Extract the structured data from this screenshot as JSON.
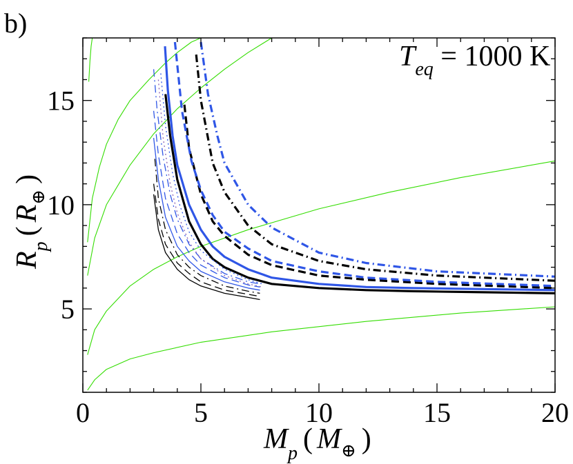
{
  "chart_data": {
    "type": "line",
    "panel_label": "b)",
    "annotation": {
      "prefix": "T",
      "subscript": "eq",
      "suffix": " = 1000 K"
    },
    "xlabel": {
      "symbol": "M",
      "sub": "p",
      "unit_open": "(",
      "unit_symbol": "M",
      "unit_sub": "⊕",
      "unit_close": ")"
    },
    "ylabel": {
      "symbol": "R",
      "sub": "p",
      "unit_open": "(",
      "unit_symbol": "R",
      "unit_sub": "⊕",
      "unit_close": ")"
    },
    "xlim": [
      0,
      20
    ],
    "ylim": [
      1,
      18
    ],
    "xticks": [
      0,
      5,
      10,
      15,
      20
    ],
    "yticks": [
      5,
      10,
      15
    ],
    "colors": {
      "black": "#000000",
      "blue": "#2f56e6",
      "green": "#33dd00"
    },
    "series": [
      {
        "name": "green-1",
        "color": "green",
        "style": "thin",
        "x": [
          0.25,
          0.3,
          0.35,
          0.4
        ],
        "y": [
          15.9,
          16.9,
          17.6,
          18.0
        ]
      },
      {
        "name": "green-2",
        "color": "green",
        "style": "thin",
        "x": [
          0.2,
          0.4,
          0.7,
          1.0,
          1.5,
          2.0,
          2.8,
          3.5,
          4.0,
          4.6,
          5.0
        ],
        "y": [
          8.2,
          10.3,
          11.8,
          12.9,
          14.1,
          15.0,
          16.0,
          16.8,
          17.3,
          17.8,
          18.0
        ]
      },
      {
        "name": "green-3",
        "color": "green",
        "style": "thin",
        "x": [
          0.2,
          0.5,
          1.0,
          2.0,
          3.0,
          4.0,
          5.0,
          6.0,
          7.0,
          8.0
        ],
        "y": [
          6.6,
          8.4,
          10.0,
          11.9,
          13.4,
          14.6,
          15.6,
          16.5,
          17.3,
          18.0
        ]
      },
      {
        "name": "green-4",
        "color": "green",
        "style": "thin",
        "x": [
          0.2,
          0.5,
          1.0,
          2.0,
          3.0,
          4.0,
          5.0,
          7.0,
          10.0,
          13.0,
          16.0,
          20.0
        ],
        "y": [
          2.8,
          4.0,
          4.9,
          6.1,
          6.9,
          7.5,
          8.0,
          8.8,
          9.8,
          10.6,
          11.3,
          12.1
        ]
      },
      {
        "name": "green-5",
        "color": "green",
        "style": "thin",
        "x": [
          0.2,
          0.5,
          1.0,
          2.0,
          3.0,
          5.0,
          8.0,
          12.0,
          16.0,
          20.0
        ],
        "y": [
          1.1,
          1.6,
          2.1,
          2.6,
          2.9,
          3.4,
          3.9,
          4.4,
          4.8,
          5.1
        ]
      },
      {
        "name": "black-solid-thick",
        "color": "black",
        "style": "solid",
        "width": 3.2,
        "x": [
          3.5,
          3.7,
          4.0,
          4.5,
          5.0,
          5.5,
          6.0,
          7.0,
          8.0,
          10.0,
          12.0,
          14.0,
          17.0,
          20.0
        ],
        "y": [
          15.3,
          13.3,
          11.2,
          9.2,
          8.1,
          7.4,
          7.0,
          6.5,
          6.2,
          6.0,
          5.9,
          5.85,
          5.8,
          5.75
        ]
      },
      {
        "name": "blue-solid-thick",
        "color": "blue",
        "style": "solid",
        "width": 3.2,
        "x": [
          3.48,
          3.6,
          3.8,
          4.0,
          4.5,
          5.0,
          5.5,
          6.0,
          7.0,
          8.0,
          10.0,
          12.0,
          14.0,
          17.0,
          20.0
        ],
        "y": [
          17.6,
          15.5,
          13.3,
          11.9,
          10.0,
          8.8,
          8.0,
          7.5,
          6.9,
          6.5,
          6.2,
          6.05,
          6.0,
          5.95,
          5.9
        ]
      },
      {
        "name": "black-dash-thick",
        "color": "black",
        "style": "dash",
        "width": 3.2,
        "x": [
          4.3,
          4.5,
          5.0,
          5.5,
          6.0,
          7.0,
          8.0,
          10.0,
          12.0,
          15.0,
          20.0
        ],
        "y": [
          14.8,
          12.7,
          10.5,
          9.2,
          8.5,
          7.6,
          7.1,
          6.6,
          6.4,
          6.2,
          6.0
        ]
      },
      {
        "name": "blue-dash-thick",
        "color": "blue",
        "style": "dash",
        "width": 3.2,
        "x": [
          3.9,
          4.2,
          4.6,
          5.0,
          5.5,
          6.0,
          7.0,
          8.0,
          10.0,
          12.0,
          15.0,
          20.0
        ],
        "y": [
          17.8,
          14.5,
          12.1,
          10.7,
          9.5,
          8.7,
          7.9,
          7.3,
          6.8,
          6.5,
          6.3,
          6.1
        ]
      },
      {
        "name": "black-dashdot-thick",
        "color": "black",
        "style": "dashdot",
        "width": 3.2,
        "x": [
          4.8,
          5.0,
          5.5,
          6.0,
          7.0,
          8.0,
          10.0,
          12.0,
          15.0,
          20.0
        ],
        "y": [
          17.2,
          15.0,
          12.0,
          10.6,
          9.0,
          8.1,
          7.3,
          6.9,
          6.6,
          6.35
        ]
      },
      {
        "name": "blue-dashdot-thick",
        "color": "blue",
        "style": "dashdot",
        "width": 3.2,
        "x": [
          5.0,
          5.3,
          5.7,
          6.0,
          7.0,
          8.0,
          10.0,
          12.0,
          15.0,
          20.0
        ],
        "y": [
          17.8,
          15.3,
          13.3,
          12.0,
          10.0,
          8.9,
          7.7,
          7.2,
          6.8,
          6.55
        ]
      },
      {
        "name": "black-solid-thin",
        "color": "black",
        "style": "solid",
        "width": 1.3,
        "x": [
          3.0,
          3.2,
          3.5,
          4.0,
          4.5,
          5.0,
          6.0,
          7.0,
          7.5
        ],
        "y": [
          10.5,
          8.8,
          7.7,
          6.9,
          6.4,
          6.1,
          5.75,
          5.55,
          5.45
        ]
      },
      {
        "name": "black-dash-thin",
        "color": "black",
        "style": "dash",
        "width": 1.3,
        "x": [
          3.0,
          3.2,
          3.5,
          4.0,
          4.5,
          5.0,
          6.0,
          7.0,
          7.5
        ],
        "y": [
          11.0,
          9.3,
          8.1,
          7.2,
          6.7,
          6.3,
          5.9,
          5.7,
          5.6
        ]
      },
      {
        "name": "black-dashdot-thin",
        "color": "black",
        "style": "dashdot",
        "width": 1.3,
        "x": [
          3.05,
          3.2,
          3.5,
          4.0,
          4.5,
          5.0,
          6.0,
          7.0,
          7.5
        ],
        "y": [
          12.2,
          10.3,
          8.8,
          7.6,
          7.0,
          6.6,
          6.1,
          5.85,
          5.75
        ]
      },
      {
        "name": "blue-solid-thin",
        "color": "blue",
        "style": "solid",
        "width": 1.3,
        "x": [
          3.0,
          3.2,
          3.5,
          4.0,
          4.5,
          5.0,
          6.0,
          7.0,
          7.5
        ],
        "y": [
          13.2,
          11.2,
          9.4,
          8.0,
          7.3,
          6.8,
          6.3,
          6.0,
          5.9
        ]
      },
      {
        "name": "blue-dash-thin",
        "color": "blue",
        "style": "dash",
        "width": 1.3,
        "x": [
          3.0,
          3.2,
          3.5,
          4.0,
          4.5,
          5.0,
          6.0,
          7.0,
          7.5
        ],
        "y": [
          14.5,
          12.4,
          10.3,
          8.6,
          7.7,
          7.1,
          6.5,
          6.15,
          6.05
        ]
      },
      {
        "name": "blue-dashdot-thin",
        "color": "blue",
        "style": "dashdot",
        "width": 1.3,
        "x": [
          3.0,
          3.15,
          3.4,
          3.7,
          4.0,
          4.5,
          5.0,
          6.0,
          7.0,
          7.5
        ],
        "y": [
          16.5,
          14.5,
          12.3,
          10.5,
          9.3,
          8.1,
          7.4,
          6.7,
          6.3,
          6.2
        ]
      },
      {
        "name": "purple-dotted-thin",
        "color": "#8a5fb5",
        "style": "dot",
        "width": 1.3,
        "x": [
          3.2,
          3.4,
          3.7,
          4.0,
          4.5,
          5.0,
          6.0,
          7.0,
          7.6
        ],
        "y": [
          16.0,
          13.2,
          11.0,
          9.6,
          8.2,
          7.4,
          6.6,
          6.2,
          6.05
        ]
      },
      {
        "name": "blue-dotted-thin",
        "color": "blue",
        "style": "dot",
        "width": 1.3,
        "x": [
          3.3,
          3.5,
          3.8,
          4.1,
          4.5,
          5.0,
          6.0,
          7.0,
          7.6
        ],
        "y": [
          16.3,
          13.8,
          11.5,
          10.0,
          8.7,
          7.8,
          6.9,
          6.4,
          6.2
        ]
      }
    ]
  }
}
